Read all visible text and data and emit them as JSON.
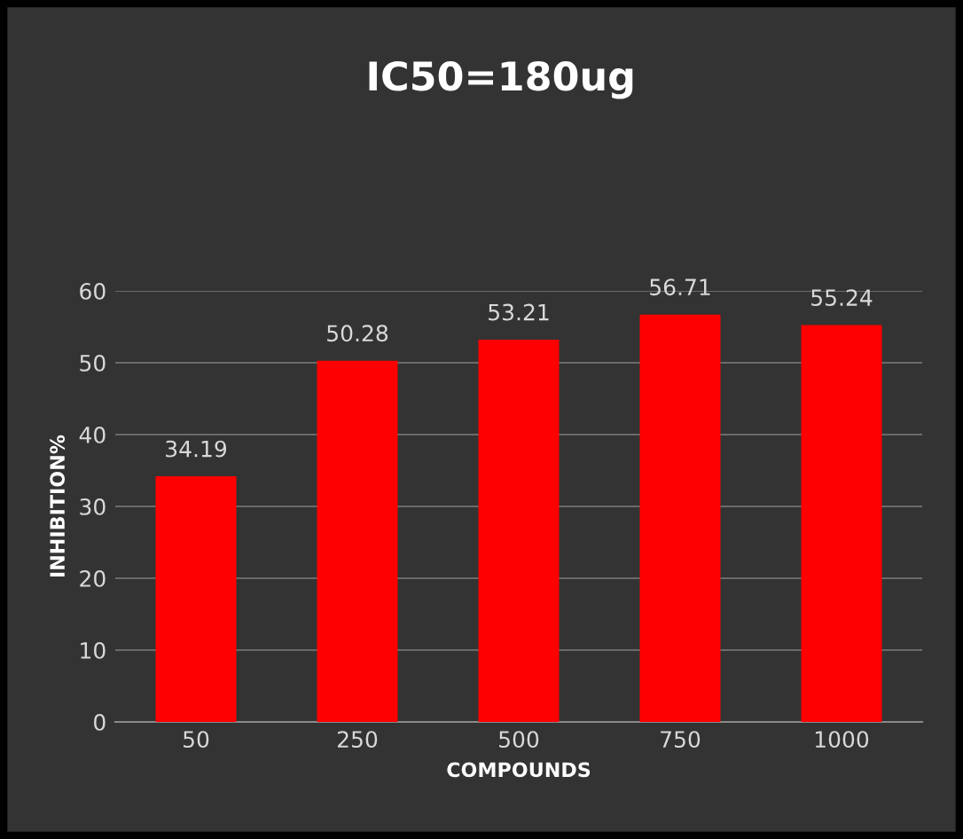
{
  "chart_data": {
    "type": "bar",
    "title": "IC50=180ug",
    "xlabel": "COMPOUNDS",
    "ylabel": "INHIBITION%",
    "categories": [
      "50",
      "250",
      "500",
      "750",
      "1000"
    ],
    "values": [
      34.19,
      50.28,
      53.21,
      56.71,
      55.24
    ],
    "color": "#ff0000",
    "ylim": [
      0,
      60
    ],
    "yticks": [
      0,
      10,
      20,
      30,
      40,
      50,
      60
    ],
    "grid": "y",
    "data_labels": true
  }
}
